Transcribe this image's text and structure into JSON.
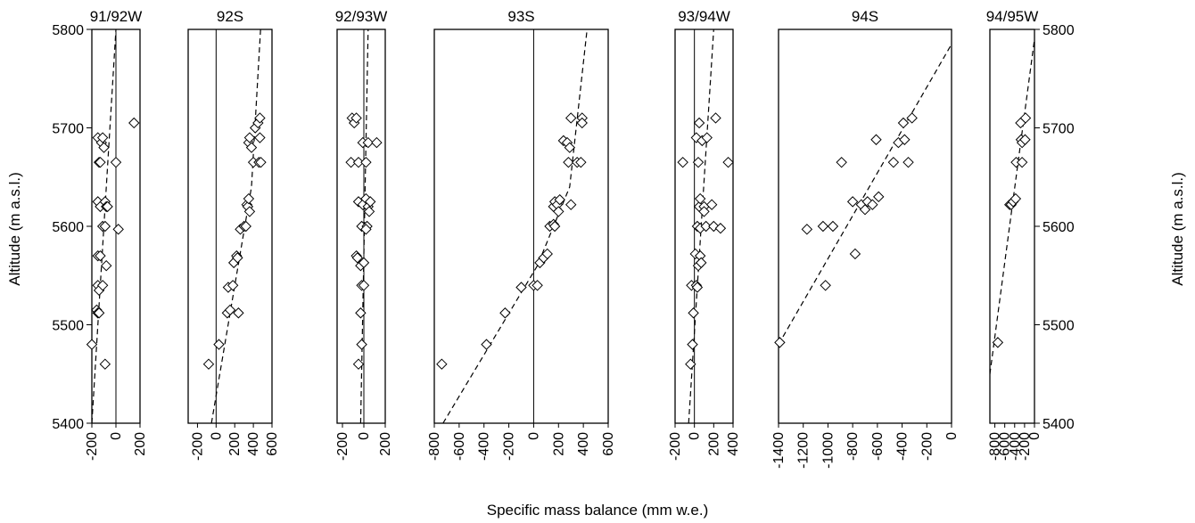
{
  "figure": {
    "ylabel_left": "Altitude (m a.s.l.)",
    "ylabel_right": "Altitude (m a.s.l.)",
    "xlabel": "Specific mass balance (mm w.e.)",
    "ylim": [
      5400,
      5800
    ],
    "yticks": [
      5400,
      5500,
      5600,
      5700,
      5800
    ]
  },
  "chart_data": [
    {
      "type": "scatter",
      "title": "91/92W",
      "xlim": [
        -200,
        200
      ],
      "xticks": [
        -200,
        0,
        200
      ],
      "zero_line": true,
      "points": [
        [
          -200,
          5480
        ],
        [
          -150,
          5690
        ],
        [
          -140,
          5665
        ],
        [
          -130,
          5665
        ],
        [
          -120,
          5685
        ],
        [
          -110,
          5690
        ],
        [
          -100,
          5680
        ],
        [
          -150,
          5625
        ],
        [
          -130,
          5620
        ],
        [
          -90,
          5625
        ],
        [
          -80,
          5620
        ],
        [
          -70,
          5620
        ],
        [
          -110,
          5600
        ],
        [
          -90,
          5600
        ],
        [
          0,
          5665
        ],
        [
          20,
          5597
        ],
        [
          -150,
          5570
        ],
        [
          -130,
          5570
        ],
        [
          -80,
          5560
        ],
        [
          -150,
          5540
        ],
        [
          -140,
          5535
        ],
        [
          -110,
          5540
        ],
        [
          -160,
          5515
        ],
        [
          -150,
          5512
        ],
        [
          -140,
          5512
        ],
        [
          -90,
          5460
        ],
        [
          150,
          5705
        ]
      ],
      "fit": [
        [
          -200,
          5400
        ],
        [
          0,
          5800
        ]
      ]
    },
    {
      "type": "scatter",
      "title": "92S",
      "xlim": [
        -300,
        600
      ],
      "xticks": [
        -200,
        0,
        200,
        400,
        600
      ],
      "zero_line": true,
      "points": [
        [
          -80,
          5460
        ],
        [
          30,
          5480
        ],
        [
          120,
          5512
        ],
        [
          150,
          5515
        ],
        [
          130,
          5538
        ],
        [
          180,
          5540
        ],
        [
          190,
          5563
        ],
        [
          220,
          5570
        ],
        [
          230,
          5568
        ],
        [
          240,
          5512
        ],
        [
          260,
          5597
        ],
        [
          300,
          5600
        ],
        [
          320,
          5600
        ],
        [
          330,
          5622
        ],
        [
          340,
          5620
        ],
        [
          350,
          5628
        ],
        [
          360,
          5615
        ],
        [
          350,
          5685
        ],
        [
          380,
          5680
        ],
        [
          360,
          5690
        ],
        [
          420,
          5700
        ],
        [
          450,
          5705
        ],
        [
          470,
          5710
        ],
        [
          400,
          5665
        ],
        [
          460,
          5665
        ],
        [
          480,
          5665
        ],
        [
          470,
          5690
        ]
      ],
      "fit": [
        [
          -50,
          5400
        ],
        [
          380,
          5640
        ],
        [
          480,
          5805
        ]
      ]
    },
    {
      "type": "scatter",
      "title": "92/93W",
      "xlim": [
        -250,
        200
      ],
      "xticks": [
        -200,
        0,
        200
      ],
      "zero_line": true,
      "points": [
        [
          -110,
          5710
        ],
        [
          -90,
          5705
        ],
        [
          -70,
          5710
        ],
        [
          -120,
          5665
        ],
        [
          -50,
          5665
        ],
        [
          20,
          5665
        ],
        [
          -10,
          5685
        ],
        [
          40,
          5685
        ],
        [
          120,
          5685
        ],
        [
          -50,
          5625
        ],
        [
          -10,
          5622
        ],
        [
          20,
          5628
        ],
        [
          40,
          5620
        ],
        [
          60,
          5625
        ],
        [
          50,
          5615
        ],
        [
          -20,
          5600
        ],
        [
          30,
          5600
        ],
        [
          20,
          5597
        ],
        [
          -70,
          5570
        ],
        [
          -60,
          5568
        ],
        [
          -30,
          5560
        ],
        [
          0,
          5563
        ],
        [
          -20,
          5540
        ],
        [
          0,
          5540
        ],
        [
          -30,
          5512
        ],
        [
          -20,
          5480
        ],
        [
          -50,
          5460
        ]
      ],
      "fit": [
        [
          -30,
          5400
        ],
        [
          40,
          5800
        ]
      ]
    },
    {
      "type": "scatter",
      "title": "93S",
      "xlim": [
        -800,
        600
      ],
      "xticks": [
        -800,
        -600,
        -400,
        -200,
        0,
        200,
        400,
        600
      ],
      "zero_line": true,
      "points": [
        [
          -740,
          5460
        ],
        [
          -380,
          5480
        ],
        [
          -230,
          5512
        ],
        [
          -100,
          5538
        ],
        [
          0,
          5540
        ],
        [
          30,
          5540
        ],
        [
          50,
          5563
        ],
        [
          80,
          5568
        ],
        [
          110,
          5572
        ],
        [
          130,
          5600
        ],
        [
          160,
          5602
        ],
        [
          170,
          5600
        ],
        [
          160,
          5620
        ],
        [
          170,
          5625
        ],
        [
          190,
          5622
        ],
        [
          210,
          5627
        ],
        [
          200,
          5615
        ],
        [
          280,
          5665
        ],
        [
          240,
          5687
        ],
        [
          270,
          5685
        ],
        [
          290,
          5680
        ],
        [
          300,
          5710
        ],
        [
          390,
          5710
        ],
        [
          390,
          5705
        ],
        [
          300,
          5622
        ],
        [
          350,
          5665
        ],
        [
          380,
          5665
        ]
      ],
      "fit": [
        [
          -730,
          5400
        ],
        [
          30,
          5560
        ],
        [
          290,
          5640
        ],
        [
          430,
          5800
        ]
      ]
    },
    {
      "type": "scatter",
      "title": "93/94W",
      "xlim": [
        -200,
        400
      ],
      "xticks": [
        -200,
        0,
        200,
        400
      ],
      "zero_line": true,
      "points": [
        [
          -120,
          5665
        ],
        [
          -40,
          5460
        ],
        [
          -20,
          5480
        ],
        [
          -30,
          5540
        ],
        [
          -10,
          5512
        ],
        [
          20,
          5540
        ],
        [
          30,
          5538
        ],
        [
          40,
          5560
        ],
        [
          10,
          5572
        ],
        [
          60,
          5570
        ],
        [
          70,
          5563
        ],
        [
          30,
          5600
        ],
        [
          60,
          5598
        ],
        [
          50,
          5620
        ],
        [
          60,
          5628
        ],
        [
          100,
          5620
        ],
        [
          100,
          5615
        ],
        [
          120,
          5600
        ],
        [
          180,
          5622
        ],
        [
          200,
          5600
        ],
        [
          270,
          5598
        ],
        [
          20,
          5690
        ],
        [
          80,
          5687
        ],
        [
          130,
          5690
        ],
        [
          50,
          5705
        ],
        [
          220,
          5710
        ],
        [
          350,
          5665
        ],
        [
          40,
          5665
        ]
      ],
      "fit": [
        [
          -60,
          5400
        ],
        [
          200,
          5800
        ]
      ]
    },
    {
      "type": "scatter",
      "title": "94S",
      "xlim": [
        -1400,
        0
      ],
      "xticks": [
        -1400,
        -1200,
        -1000,
        -800,
        -600,
        -400,
        -200,
        0
      ],
      "zero_line": false,
      "points": [
        [
          -1390,
          5482
        ],
        [
          -1020,
          5540
        ],
        [
          -780,
          5572
        ],
        [
          -1170,
          5597
        ],
        [
          -1040,
          5600
        ],
        [
          -960,
          5600
        ],
        [
          -800,
          5625
        ],
        [
          -730,
          5622
        ],
        [
          -700,
          5617
        ],
        [
          -680,
          5625
        ],
        [
          -640,
          5622
        ],
        [
          -590,
          5630
        ],
        [
          -890,
          5665
        ],
        [
          -470,
          5665
        ],
        [
          -350,
          5665
        ],
        [
          -610,
          5688
        ],
        [
          -430,
          5685
        ],
        [
          -380,
          5688
        ],
        [
          -390,
          5705
        ],
        [
          -320,
          5710
        ]
      ],
      "fit": [
        [
          -1400,
          5480
        ],
        [
          0,
          5785
        ]
      ]
    },
    {
      "type": "scatter",
      "title": "94/95W",
      "xlim": [
        -900,
        0
      ],
      "xticks": [
        -800,
        -600,
        -400,
        -200,
        0
      ],
      "zero_line": false,
      "points": [
        [
          -740,
          5482
        ],
        [
          -500,
          5622
        ],
        [
          -470,
          5622
        ],
        [
          -430,
          5625
        ],
        [
          -380,
          5628
        ],
        [
          -370,
          5665
        ],
        [
          -250,
          5665
        ],
        [
          -270,
          5688
        ],
        [
          -250,
          5685
        ],
        [
          -190,
          5688
        ],
        [
          -280,
          5705
        ],
        [
          -180,
          5710
        ]
      ],
      "fit": [
        [
          -900,
          5450
        ],
        [
          0,
          5790
        ]
      ]
    }
  ]
}
